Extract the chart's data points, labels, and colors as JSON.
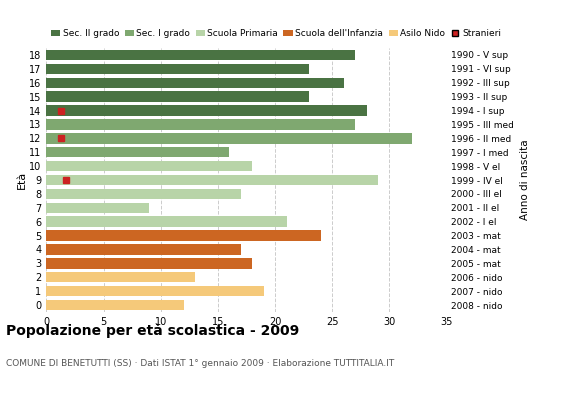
{
  "ages": [
    18,
    17,
    16,
    15,
    14,
    13,
    12,
    11,
    10,
    9,
    8,
    7,
    6,
    5,
    4,
    3,
    2,
    1,
    0
  ],
  "years": [
    "1990 - V sup",
    "1991 - VI sup",
    "1992 - III sup",
    "1993 - II sup",
    "1994 - I sup",
    "1995 - III med",
    "1996 - II med",
    "1997 - I med",
    "1998 - V el",
    "1999 - IV el",
    "2000 - III el",
    "2001 - II el",
    "2002 - I el",
    "2003 - mat",
    "2004 - mat",
    "2005 - mat",
    "2006 - nido",
    "2007 - nido",
    "2008 - nido"
  ],
  "bar_values": [
    27,
    23,
    26,
    23,
    28,
    27,
    32,
    16,
    18,
    29,
    17,
    9,
    21,
    24,
    17,
    18,
    13,
    19,
    12
  ],
  "stranieri_x": [
    0,
    0,
    0,
    0,
    1.3,
    0,
    1.3,
    0,
    0,
    1.7,
    0,
    0,
    0,
    0,
    0,
    0,
    0,
    0,
    0
  ],
  "categories": [
    "Sec. II grado",
    "Sec. I grado",
    "Scuola Primaria",
    "Scuola dell'Infanzia",
    "Asilo Nido",
    "Stranieri"
  ],
  "cat_colors": [
    "#4a7343",
    "#7fa870",
    "#b8d4a8",
    "#cc6622",
    "#f5c97a",
    "#cc2222"
  ],
  "bar_colors": [
    "#4a7343",
    "#4a7343",
    "#4a7343",
    "#4a7343",
    "#4a7343",
    "#7fa870",
    "#7fa870",
    "#7fa870",
    "#b8d4a8",
    "#b8d4a8",
    "#b8d4a8",
    "#b8d4a8",
    "#b8d4a8",
    "#cc6622",
    "#cc6622",
    "#cc6622",
    "#f5c97a",
    "#f5c97a",
    "#f5c97a"
  ],
  "title": "Popolazione per età scolastica - 2009",
  "subtitle": "COMUNE DI BENETUTTI (SS) · Dati ISTAT 1° gennaio 2009 · Elaborazione TUTTITALIA.IT",
  "ylabel": "Età",
  "right_label": "Anno di nascita",
  "xlim": [
    0,
    35
  ],
  "background_color": "#ffffff",
  "grid_color": "#cccccc"
}
